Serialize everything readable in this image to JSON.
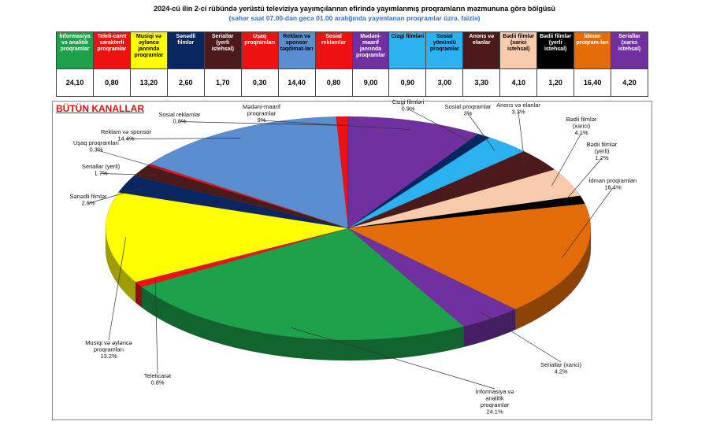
{
  "header": {
    "title": "2024-cü ilin 2-ci rübündə yerüstü televiziya yayımçılarının efirində yayımlanmış proqramların məzmununa görə bölgüsü",
    "subtitle": "(səhər saat 07.00-dan gecə 01.00 aralığında yayımlanan proqramlar üzrə, faizlə)"
  },
  "panel_title": "BÜTÜN KANALLAR",
  "table": {
    "headers": [
      {
        "label": "İnformasiya və analitik proqramlar",
        "bg": "#1da14a",
        "fg": "#ffffff"
      },
      {
        "label": "Teleti-caret xarakterli proqramlar",
        "bg": "#ee1111",
        "fg": "#ffffff"
      },
      {
        "label": "Musiqi və əyləncə janrında proqramlar",
        "bg": "#ffff00",
        "fg": "#000000"
      },
      {
        "label": "Sənədli filmlər",
        "bg": "#0a2660",
        "fg": "#ffffff"
      },
      {
        "label": "Seriallar (yerli istehsal)",
        "bg": "#4c1a1a",
        "fg": "#ffffff"
      },
      {
        "label": "Uşaq proqramları",
        "bg": "#ee1111",
        "fg": "#ffffff"
      },
      {
        "label": "Reklam və sponsor təqdimat-ları",
        "bg": "#5b8dd1",
        "fg": "#000000"
      },
      {
        "label": "Sosial reklamlar",
        "bg": "#ee1111",
        "fg": "#ffffff"
      },
      {
        "label": "Mədəni-maarif janrında proqramlar",
        "bg": "#7030a0",
        "fg": "#ffffff"
      },
      {
        "label": "Cizgi filmləri",
        "bg": "#2bb0f0",
        "fg": "#000000"
      },
      {
        "label": "Sosial yönümlü proqramlar",
        "bg": "#2bb0f0",
        "fg": "#000000"
      },
      {
        "label": "Anons və elanlar",
        "bg": "#4c1a1a",
        "fg": "#ffffff"
      },
      {
        "label": "Bədii filmlər (xarici istehsal)",
        "bg": "#f8cbad",
        "fg": "#000000"
      },
      {
        "label": "Bədii filmlər (yerli istehsal)",
        "bg": "#000000",
        "fg": "#ffffff"
      },
      {
        "label": "İdman proqram-ları",
        "bg": "#e36c09",
        "fg": "#ffffff"
      },
      {
        "label": "Seriallar (xarici istehsal)",
        "bg": "#7030a0",
        "fg": "#ffffff"
      }
    ],
    "values": [
      "24,10",
      "0,80",
      "13,20",
      "2,60",
      "1,70",
      "0,30",
      "14,40",
      "0,80",
      "9,00",
      "0,90",
      "3,00",
      "3,30",
      "4,10",
      "1,20",
      "16,40",
      "4,20"
    ]
  },
  "chart_data": {
    "type": "pie",
    "title": "BÜTÜN KANALLAR",
    "unit": "%",
    "slices": [
      {
        "name": "Mədəni-maarif proqramlar",
        "value": 9.0,
        "label": "9%",
        "color": "#7030a0"
      },
      {
        "name": "Cizgi filmləri",
        "value": 0.9,
        "label": "0.9%",
        "color": "#0a2660"
      },
      {
        "name": "Sosial proqramlar",
        "value": 3.0,
        "label": "3%",
        "color": "#2bb0f0"
      },
      {
        "name": "Anons və elanlar",
        "value": 3.3,
        "label": "3.3%",
        "color": "#4c1a1a"
      },
      {
        "name": "Bədii filmlər (xarici)",
        "value": 4.1,
        "label": "4.1%",
        "color": "#f8cbad"
      },
      {
        "name": "Bədii filmlər (yerli)",
        "value": 1.2,
        "label": "1.2%",
        "color": "#000000"
      },
      {
        "name": "İdman proqramları",
        "value": 16.4,
        "label": "16.4%",
        "color": "#e36c09"
      },
      {
        "name": "Seriallar (xarici)",
        "value": 4.2,
        "label": "4.2%",
        "color": "#7030a0"
      },
      {
        "name": "İnformasiya və analitik proqramlar",
        "value": 24.1,
        "label": "24.1%",
        "color": "#1da14a"
      },
      {
        "name": "Teleticarət",
        "value": 0.8,
        "label": "0.8%",
        "color": "#ee1111"
      },
      {
        "name": "Musiqi və əyləncə proqramları",
        "value": 13.2,
        "label": "13.2%",
        "color": "#ffff00"
      },
      {
        "name": "Sənədli filmlər",
        "value": 2.6,
        "label": "2.6%",
        "color": "#0a2660"
      },
      {
        "name": "Seriallar (yerli)",
        "value": 1.7,
        "label": "1.7%",
        "color": "#4c1a1a"
      },
      {
        "name": "Uşaq proqramları",
        "value": 0.3,
        "label": "0.3%",
        "color": "#ee1111"
      },
      {
        "name": "Reklam və sponsor",
        "value": 14.4,
        "label": "14.4%",
        "color": "#5b8dd1"
      },
      {
        "name": "Sosial reklamlar",
        "value": 0.8,
        "label": "0.8%",
        "color": "#ee1111"
      }
    ]
  }
}
